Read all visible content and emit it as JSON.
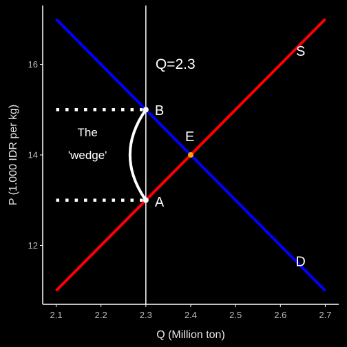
{
  "chart_data": {
    "type": "line",
    "title": "",
    "xlabel": "Q (Million ton)",
    "ylabel": "P (1.000 IDR per kg)",
    "xlim": [
      2.1,
      2.7
    ],
    "ylim": [
      11,
      17
    ],
    "x_ticks": [
      "2.1",
      "2.2",
      "2.3",
      "2.4",
      "2.5",
      "2.6",
      "2.7"
    ],
    "y_ticks": [
      "12",
      "14",
      "16"
    ],
    "grid": false,
    "colors": {
      "background": "#000000",
      "axis": "#ffffff",
      "text": "#ffffff"
    },
    "series": [
      {
        "name": "D",
        "color": "#0000ff",
        "points": [
          [
            2.1,
            17
          ],
          [
            2.7,
            11
          ]
        ]
      },
      {
        "name": "S",
        "color": "#ff0000",
        "points": [
          [
            2.1,
            11
          ],
          [
            2.7,
            17
          ]
        ]
      }
    ],
    "vertical_line": {
      "x": 2.3,
      "label": "Q=2.3",
      "color": "#ffffff"
    },
    "dotted_lines": [
      {
        "from": [
          2.1,
          15
        ],
        "to": [
          2.3,
          15
        ]
      },
      {
        "from": [
          2.1,
          13
        ],
        "to": [
          2.3,
          13
        ]
      }
    ],
    "points": [
      {
        "label": "B",
        "x": 2.3,
        "y": 15,
        "color": "#ffffff"
      },
      {
        "label": "A",
        "x": 2.3,
        "y": 13,
        "color": "#ffffff"
      },
      {
        "label": "E",
        "x": 2.4,
        "y": 14,
        "color": "#ffa500"
      }
    ],
    "wedge": {
      "from": [
        2.3,
        15
      ],
      "to": [
        2.3,
        13
      ],
      "label_lines": [
        "The",
        "'wedge'"
      ]
    },
    "curve_labels": [
      {
        "text": "S",
        "x": 2.645,
        "y": 16.3
      },
      {
        "text": "D",
        "x": 2.645,
        "y": 11.65
      }
    ]
  }
}
